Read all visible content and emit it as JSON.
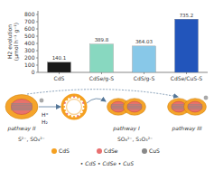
{
  "chart_data": {
    "type": "bar",
    "categories": [
      "CdS",
      "CdSe/g-S",
      "CdS/g-S",
      "CdSe/CuS-S"
    ],
    "values": [
      140.1,
      389.8,
      364.03,
      735.2
    ],
    "colors": [
      "#1a1a1a",
      "#88d8c0",
      "#88c8e8",
      "#2255bb"
    ],
    "ylim": [
      0,
      850
    ],
    "yticks": [
      0,
      100,
      200,
      300,
      400,
      500,
      600,
      700,
      800
    ],
    "y_label": "H2 evolution\n(μmol h⁻¹ g⁻¹)",
    "data_labels": true,
    "grid": false,
    "annotations": [
      {
        "text": "pathway I"
      },
      {
        "text": "pathway II"
      },
      {
        "text": "pathway III"
      },
      {
        "text": "S²⁻, SO₄²⁻"
      },
      {
        "text": "SO₄²⁻, S₂O₃²⁻"
      },
      {
        "text": "H⁺"
      },
      {
        "text": "H₂"
      },
      {
        "text": "CdS",
        "color": "#f5a020"
      },
      {
        "text": "CdSe",
        "color": "#e87070"
      },
      {
        "text": "CuS",
        "color": "#888888"
      },
      {
        "text": "• CdS  • CdSe  • CuS"
      }
    ]
  }
}
